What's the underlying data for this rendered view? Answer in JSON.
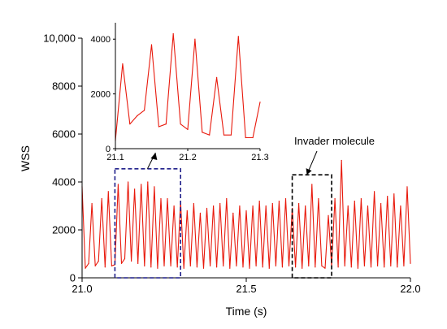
{
  "colors": {
    "red": "#e8190c",
    "olive": "#6b5a10",
    "navy": "#1f1f8a",
    "black": "#000000"
  },
  "chart_data": [
    {
      "type": "line",
      "title": "",
      "xlabel": "Time (s)",
      "ylabel": "WSS",
      "xlim": [
        21.0,
        22.0
      ],
      "ylim": [
        0,
        10000
      ],
      "xticks": [
        "21.0",
        "21.5",
        "22.0"
      ],
      "yticks": [
        "0",
        "2000",
        "4000",
        "6000",
        "8000",
        "10,000"
      ],
      "series": [
        {
          "color": "#e8190c",
          "x": [
            21.0,
            21.01,
            21.02,
            21.03,
            21.04,
            21.05,
            21.06,
            21.07,
            21.08,
            21.09,
            21.1,
            21.11,
            21.12,
            21.13,
            21.14,
            21.15,
            21.16,
            21.17,
            21.18,
            21.19,
            21.2,
            21.21,
            21.22,
            21.23,
            21.24,
            21.25,
            21.26,
            21.27,
            21.28,
            21.29,
            21.3,
            21.31,
            21.32,
            21.33,
            21.34,
            21.35,
            21.36,
            21.37,
            21.38,
            21.39,
            21.4,
            21.41,
            21.42,
            21.43,
            21.44,
            21.45,
            21.46,
            21.47,
            21.48,
            21.49,
            21.5,
            21.51,
            21.52,
            21.53,
            21.54,
            21.55,
            21.56,
            21.57,
            21.58,
            21.59,
            21.6,
            21.61,
            21.62,
            21.63,
            21.64,
            21.65,
            21.66,
            21.67,
            21.68,
            21.69,
            21.7,
            21.71,
            21.72,
            21.73,
            21.74,
            21.75,
            21.76,
            21.77,
            21.78,
            21.79,
            21.8,
            21.81,
            21.82,
            21.83,
            21.84,
            21.85,
            21.86,
            21.87,
            21.88,
            21.89,
            21.9,
            21.91,
            21.92,
            21.93,
            21.94,
            21.95,
            21.96,
            21.97,
            21.98,
            21.99,
            22.0
          ],
          "values": [
            3800,
            400,
            600,
            3100,
            500,
            700,
            3300,
            450,
            3600,
            500,
            550,
            3900,
            600,
            800,
            4000,
            700,
            3700,
            600,
            3900,
            500,
            4000,
            450,
            3800,
            400,
            3300,
            500,
            3300,
            500,
            3000,
            450,
            3200,
            400,
            2800,
            500,
            3100,
            450,
            2700,
            400,
            2900,
            500,
            3000,
            450,
            3100,
            500,
            3300,
            400,
            2700,
            500,
            3000,
            450,
            2800,
            400,
            3000,
            500,
            3200,
            450,
            3000,
            400,
            3100,
            500,
            3200,
            450,
            3300,
            500,
            2900,
            450,
            3100,
            400,
            3000,
            500,
            3900,
            450,
            3300,
            500,
            400,
            2600,
            500,
            3300,
            450,
            4900,
            500,
            3000,
            450,
            3200,
            400,
            3300,
            500,
            3000,
            450,
            3600,
            500,
            3100,
            450,
            3400,
            500,
            3500,
            450,
            3000,
            500,
            3800,
            600
          ]
        }
      ],
      "annotations": [
        "Invader molecule"
      ]
    },
    {
      "type": "line",
      "title": "",
      "xlim": [
        21.1,
        21.3
      ],
      "ylim": [
        0,
        4600
      ],
      "xticks": [
        "21.1",
        "21.2",
        "21.3"
      ],
      "yticks": [
        "0",
        "2000",
        "4000"
      ],
      "series": [
        {
          "color": "#e8190c",
          "x": [
            21.1,
            21.11,
            21.12,
            21.13,
            21.14,
            21.15,
            21.16,
            21.17,
            21.18,
            21.19,
            21.2,
            21.21,
            21.22,
            21.23,
            21.24,
            21.25,
            21.26,
            21.27,
            21.28,
            21.29,
            21.3
          ],
          "values": [
            300,
            3100,
            900,
            1200,
            1400,
            3800,
            800,
            900,
            4200,
            900,
            700,
            4000,
            600,
            500,
            2600,
            500,
            500,
            4100,
            400,
            400,
            1700
          ]
        }
      ]
    }
  ]
}
